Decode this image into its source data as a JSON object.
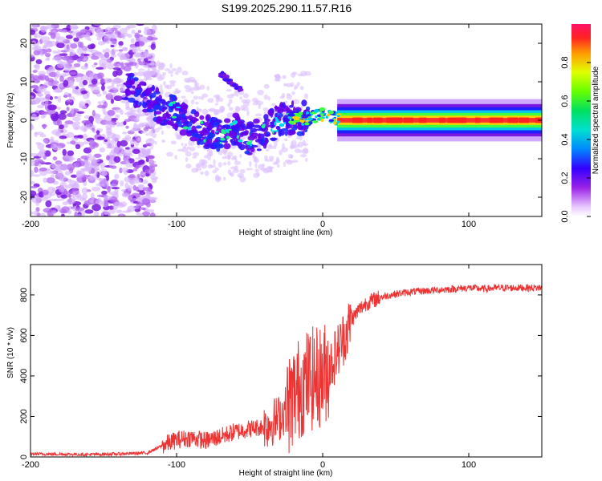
{
  "chart_data": [
    {
      "type": "heatmap",
      "title": "S199.2025.290.11.57.R16",
      "xlabel": "Height of straight line (km)",
      "ylabel": "Frequency (Hz)",
      "xlim": [
        -200,
        150
      ],
      "ylim": [
        -25,
        25
      ],
      "xticks": [
        -200,
        -100,
        0,
        100
      ],
      "xtick_labels": [
        "-200",
        "-100",
        "0",
        "100"
      ],
      "yticks": [
        -20,
        -10,
        0,
        10,
        20
      ],
      "ytick_labels": [
        "-20",
        "-10",
        "0",
        "10",
        "20"
      ],
      "description_series": [
        {
          "name": "ridge_center_hz",
          "x": [
            -135,
            -120,
            -110,
            -100,
            -90,
            -80,
            -70,
            -60,
            -50,
            -40,
            -30,
            -20,
            -10,
            0,
            10,
            20,
            150
          ],
          "values": [
            9,
            6,
            3,
            2,
            -1,
            -3,
            -4,
            -2,
            -5,
            -3,
            0,
            0.5,
            0.5,
            1.5,
            0.5,
            0,
            0
          ]
        }
      ],
      "colorbar": {
        "label": "Normalized spectral amplitude",
        "range": [
          0,
          1
        ],
        "ticks": [
          0,
          0.2,
          0.4,
          0.6,
          0.8
        ],
        "tick_labels": [
          "0.0",
          "0.2",
          "0.4",
          "0.6",
          "0.8"
        ]
      }
    },
    {
      "type": "line",
      "title": "",
      "xlabel": "Height of straight line (km)",
      "ylabel": "SNR (10 * v/v)",
      "xlim": [
        -200,
        150
      ],
      "ylim": [
        0,
        950
      ],
      "xticks": [
        -200,
        -100,
        0,
        100
      ],
      "xtick_labels": [
        "-200",
        "-100",
        "0",
        "100"
      ],
      "yticks": [
        0,
        200,
        400,
        600,
        800
      ],
      "ytick_labels": [
        "0",
        "200",
        "400",
        "600",
        "800"
      ],
      "series": [
        {
          "name": "SNR",
          "color": "#ee3333",
          "x": [
            -200,
            -180,
            -160,
            -140,
            -120,
            -110,
            -100,
            -90,
            -80,
            -70,
            -60,
            -50,
            -40,
            -30,
            -25,
            -20,
            -15,
            -10,
            -5,
            0,
            5,
            10,
            15,
            20,
            25,
            30,
            40,
            50,
            60,
            70,
            80,
            90,
            100,
            110,
            120,
            130,
            140,
            150
          ],
          "values": [
            15,
            14,
            12,
            15,
            20,
            55,
            85,
            95,
            80,
            100,
            125,
            140,
            150,
            190,
            240,
            300,
            350,
            380,
            390,
            400,
            450,
            520,
            600,
            680,
            730,
            760,
            790,
            805,
            815,
            820,
            825,
            830,
            835,
            830,
            835,
            835,
            835,
            835
          ]
        }
      ]
    }
  ]
}
